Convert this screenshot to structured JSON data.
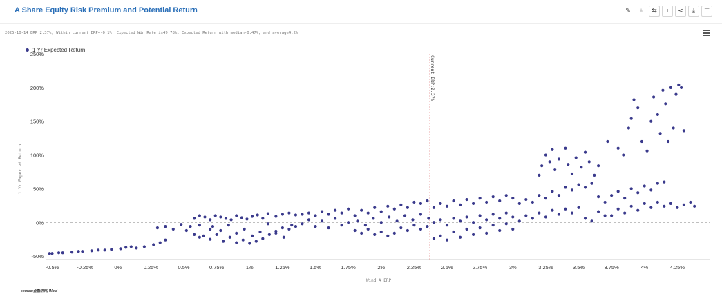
{
  "header": {
    "title": "A Share Equity Risk Premium and Potential Return",
    "toolbar": [
      {
        "name": "pen-icon",
        "glyph": "✎"
      },
      {
        "name": "star-icon",
        "glyph": "★"
      },
      {
        "name": "swap-icon",
        "glyph": "⇆"
      },
      {
        "name": "info-icon",
        "glyph": "i"
      },
      {
        "name": "share-icon",
        "glyph": "<"
      },
      {
        "name": "download-icon",
        "glyph": "⤓"
      },
      {
        "name": "list-icon",
        "glyph": "☰"
      }
    ]
  },
  "subtitle": "2025-10-14 ERP 2.37%, Within current ERP+-0.1%, Expected Win Rate is49.78%, Expected Return with median-0.47%, and average4.2%",
  "source": "source:金融研究, Wind",
  "colors": {
    "dot": "#3a3a8c",
    "marker_line": "#d9534f",
    "grid": "#999999",
    "title": "#2a6fb8"
  },
  "chart_data": {
    "type": "scatter",
    "title": "A Share Equity Risk Premium and Potential Return",
    "xlabel": "Wind A ERP",
    "ylabel": "1 Yr Expected Return",
    "xlim": [
      -0.55,
      4.5
    ],
    "ylim": [
      -55,
      250
    ],
    "x_ticks": [
      -0.5,
      -0.25,
      0,
      0.25,
      0.5,
      0.75,
      1,
      1.25,
      1.5,
      1.75,
      2,
      2.25,
      2.5,
      2.75,
      3,
      3.25,
      3.5,
      3.75,
      4,
      4.25
    ],
    "x_tick_labels": [
      "-0.5%",
      "-0.25%",
      "0%",
      "0.25%",
      "0.5%",
      "0.75%",
      "1%",
      "1.25%",
      "1.5%",
      "1.75%",
      "2%",
      "2.25%",
      "2.5%",
      "2.75%",
      "3%",
      "3.25%",
      "3.5%",
      "3.75%",
      "4%",
      "4.25%"
    ],
    "y_ticks": [
      -50,
      0,
      50,
      100,
      150,
      200,
      250
    ],
    "y_tick_labels": [
      "-50%",
      "0%",
      "50%",
      "100%",
      "150%",
      "200%",
      "250%"
    ],
    "legend": {
      "position": "top-left",
      "entries": [
        "1 Yr Expected Return"
      ]
    },
    "grid": false,
    "reference_lines": [
      {
        "axis": "y",
        "value": 0,
        "style": "dashed"
      },
      {
        "axis": "x",
        "value": 2.37,
        "style": "dashed",
        "label": "Current ERP:2.37%"
      }
    ],
    "series": [
      {
        "name": "1 Yr Expected Return",
        "points": [
          [
            -0.52,
            -46
          ],
          [
            -0.5,
            -46
          ],
          [
            -0.45,
            -45
          ],
          [
            -0.42,
            -45
          ],
          [
            -0.35,
            -44
          ],
          [
            -0.3,
            -43
          ],
          [
            -0.27,
            -43
          ],
          [
            -0.2,
            -42
          ],
          [
            -0.15,
            -41
          ],
          [
            -0.1,
            -41
          ],
          [
            -0.05,
            -40
          ],
          [
            0.02,
            -39
          ],
          [
            0.06,
            -37
          ],
          [
            0.1,
            -36
          ],
          [
            0.14,
            -38
          ],
          [
            0.2,
            -36
          ],
          [
            0.27,
            -33
          ],
          [
            0.32,
            -30
          ],
          [
            0.36,
            -26
          ],
          [
            0.3,
            -8
          ],
          [
            0.36,
            -6
          ],
          [
            0.42,
            -10
          ],
          [
            0.48,
            -3
          ],
          [
            0.52,
            -12
          ],
          [
            0.55,
            -6
          ],
          [
            0.58,
            -18
          ],
          [
            0.62,
            -4
          ],
          [
            0.65,
            -20
          ],
          [
            0.7,
            -10
          ],
          [
            0.58,
            6
          ],
          [
            0.62,
            10
          ],
          [
            0.66,
            8
          ],
          [
            0.7,
            4
          ],
          [
            0.74,
            10
          ],
          [
            0.78,
            8
          ],
          [
            0.82,
            6
          ],
          [
            0.86,
            4
          ],
          [
            0.9,
            10
          ],
          [
            0.94,
            7
          ],
          [
            0.98,
            5
          ],
          [
            1.02,
            9
          ],
          [
            1.06,
            11
          ],
          [
            1.1,
            6
          ],
          [
            1.14,
            13
          ],
          [
            1.2,
            9
          ],
          [
            1.25,
            12
          ],
          [
            1.3,
            14
          ],
          [
            1.35,
            11
          ],
          [
            0.62,
            -22
          ],
          [
            0.7,
            -25
          ],
          [
            0.75,
            -18
          ],
          [
            0.8,
            -28
          ],
          [
            0.85,
            -22
          ],
          [
            0.9,
            -30
          ],
          [
            0.95,
            -26
          ],
          [
            1.0,
            -31
          ],
          [
            1.05,
            -28
          ],
          [
            1.1,
            -24
          ],
          [
            1.15,
            -18
          ],
          [
            1.2,
            -13
          ],
          [
            1.25,
            -8
          ],
          [
            1.3,
            -10
          ],
          [
            1.35,
            -6
          ],
          [
            0.72,
            -6
          ],
          [
            0.78,
            -12
          ],
          [
            0.84,
            -4
          ],
          [
            0.9,
            -16
          ],
          [
            0.96,
            -10
          ],
          [
            1.02,
            -20
          ],
          [
            1.08,
            -14
          ],
          [
            1.14,
            -2
          ],
          [
            1.2,
            -16
          ],
          [
            1.26,
            -22
          ],
          [
            1.32,
            -4
          ],
          [
            1.4,
            -2
          ],
          [
            1.45,
            4
          ],
          [
            1.5,
            -6
          ],
          [
            1.55,
            2
          ],
          [
            1.6,
            -8
          ],
          [
            1.65,
            6
          ],
          [
            1.7,
            -4
          ],
          [
            1.75,
            0
          ],
          [
            1.4,
            12
          ],
          [
            1.45,
            14
          ],
          [
            1.5,
            10
          ],
          [
            1.55,
            16
          ],
          [
            1.6,
            12
          ],
          [
            1.65,
            18
          ],
          [
            1.7,
            14
          ],
          [
            1.75,
            20
          ],
          [
            1.8,
            -12
          ],
          [
            1.85,
            -16
          ],
          [
            1.9,
            -10
          ],
          [
            1.95,
            -18
          ],
          [
            2.0,
            -14
          ],
          [
            2.05,
            -20
          ],
          [
            2.1,
            -16
          ],
          [
            2.15,
            -8
          ],
          [
            2.2,
            -12
          ],
          [
            2.25,
            -4
          ],
          [
            2.3,
            -10
          ],
          [
            2.35,
            -6
          ],
          [
            1.8,
            10
          ],
          [
            1.85,
            18
          ],
          [
            1.9,
            14
          ],
          [
            1.95,
            22
          ],
          [
            2.0,
            16
          ],
          [
            2.05,
            24
          ],
          [
            2.1,
            20
          ],
          [
            2.15,
            26
          ],
          [
            2.2,
            22
          ],
          [
            2.25,
            30
          ],
          [
            2.3,
            28
          ],
          [
            2.35,
            32
          ],
          [
            1.82,
            2
          ],
          [
            1.88,
            -4
          ],
          [
            1.94,
            6
          ],
          [
            2.0,
            0
          ],
          [
            2.06,
            8
          ],
          [
            2.12,
            2
          ],
          [
            2.18,
            10
          ],
          [
            2.24,
            4
          ],
          [
            2.3,
            12
          ],
          [
            2.36,
            6
          ],
          [
            2.4,
            -24
          ],
          [
            2.45,
            -20
          ],
          [
            2.5,
            -26
          ],
          [
            2.55,
            -14
          ],
          [
            2.6,
            -22
          ],
          [
            2.65,
            -10
          ],
          [
            2.7,
            -18
          ],
          [
            2.75,
            -8
          ],
          [
            2.8,
            -16
          ],
          [
            2.85,
            -4
          ],
          [
            2.9,
            -12
          ],
          [
            2.95,
            -2
          ],
          [
            3.0,
            -10
          ],
          [
            2.4,
            0
          ],
          [
            2.45,
            4
          ],
          [
            2.5,
            -4
          ],
          [
            2.55,
            6
          ],
          [
            2.6,
            2
          ],
          [
            2.65,
            8
          ],
          [
            2.7,
            0
          ],
          [
            2.75,
            10
          ],
          [
            2.8,
            4
          ],
          [
            2.85,
            12
          ],
          [
            2.9,
            6
          ],
          [
            2.95,
            14
          ],
          [
            3.0,
            8
          ],
          [
            2.4,
            22
          ],
          [
            2.45,
            28
          ],
          [
            2.5,
            24
          ],
          [
            2.55,
            32
          ],
          [
            2.6,
            26
          ],
          [
            2.65,
            34
          ],
          [
            2.7,
            28
          ],
          [
            2.75,
            36
          ],
          [
            2.8,
            30
          ],
          [
            2.85,
            38
          ],
          [
            2.9,
            32
          ],
          [
            2.95,
            40
          ],
          [
            3.0,
            36
          ],
          [
            3.05,
            2
          ],
          [
            3.1,
            10
          ],
          [
            3.15,
            6
          ],
          [
            3.2,
            14
          ],
          [
            3.25,
            8
          ],
          [
            3.3,
            18
          ],
          [
            3.35,
            12
          ],
          [
            3.4,
            20
          ],
          [
            3.45,
            14
          ],
          [
            3.5,
            22
          ],
          [
            3.55,
            6
          ],
          [
            3.6,
            2
          ],
          [
            3.65,
            16
          ],
          [
            3.7,
            10
          ],
          [
            3.05,
            28
          ],
          [
            3.1,
            34
          ],
          [
            3.15,
            30
          ],
          [
            3.2,
            40
          ],
          [
            3.25,
            36
          ],
          [
            3.3,
            46
          ],
          [
            3.35,
            40
          ],
          [
            3.4,
            52
          ],
          [
            3.45,
            48
          ],
          [
            3.5,
            56
          ],
          [
            3.55,
            52
          ],
          [
            3.6,
            58
          ],
          [
            3.65,
            38
          ],
          [
            3.7,
            30
          ],
          [
            3.2,
            70
          ],
          [
            3.22,
            84
          ],
          [
            3.25,
            100
          ],
          [
            3.28,
            90
          ],
          [
            3.3,
            108
          ],
          [
            3.32,
            78
          ],
          [
            3.35,
            94
          ],
          [
            3.4,
            110
          ],
          [
            3.42,
            86
          ],
          [
            3.45,
            72
          ],
          [
            3.48,
            96
          ],
          [
            3.52,
            82
          ],
          [
            3.55,
            104
          ],
          [
            3.58,
            90
          ],
          [
            3.62,
            70
          ],
          [
            3.65,
            84
          ],
          [
            3.75,
            10
          ],
          [
            3.8,
            20
          ],
          [
            3.85,
            14
          ],
          [
            3.9,
            24
          ],
          [
            3.95,
            18
          ],
          [
            4.0,
            28
          ],
          [
            4.05,
            22
          ],
          [
            4.1,
            30
          ],
          [
            4.15,
            24
          ],
          [
            4.2,
            28
          ],
          [
            4.25,
            22
          ],
          [
            4.3,
            26
          ],
          [
            4.35,
            30
          ],
          [
            4.38,
            24
          ],
          [
            3.75,
            40
          ],
          [
            3.8,
            46
          ],
          [
            3.85,
            36
          ],
          [
            3.9,
            50
          ],
          [
            3.95,
            44
          ],
          [
            4.0,
            54
          ],
          [
            4.05,
            48
          ],
          [
            4.1,
            58
          ],
          [
            4.15,
            60
          ],
          [
            3.72,
            120
          ],
          [
            3.8,
            110
          ],
          [
            3.84,
            100
          ],
          [
            3.88,
            140
          ],
          [
            3.9,
            154
          ],
          [
            3.92,
            182
          ],
          [
            3.95,
            170
          ],
          [
            3.98,
            120
          ],
          [
            4.02,
            106
          ],
          [
            4.05,
            150
          ],
          [
            4.07,
            186
          ],
          [
            4.1,
            160
          ],
          [
            4.12,
            132
          ],
          [
            4.14,
            196
          ],
          [
            4.16,
            176
          ],
          [
            4.18,
            120
          ],
          [
            4.2,
            200
          ],
          [
            4.22,
            140
          ],
          [
            4.24,
            190
          ],
          [
            4.26,
            204
          ],
          [
            4.28,
            200
          ],
          [
            4.3,
            136
          ]
        ]
      }
    ]
  }
}
